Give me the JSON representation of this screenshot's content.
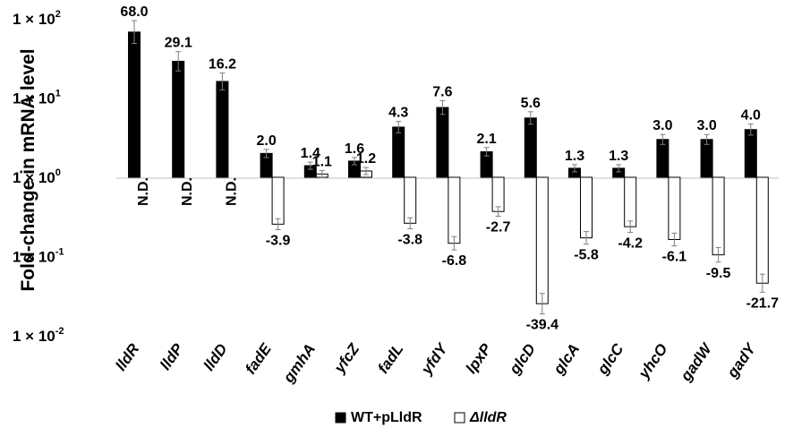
{
  "chart_data": {
    "type": "bar",
    "ylabel": "Fold-change in mRNA level",
    "yscale": "log",
    "ylim": [
      0.01,
      100
    ],
    "yticks": [
      {
        "base": "1 × 10",
        "exp": "2",
        "value": 100
      },
      {
        "base": "1 × 10",
        "exp": "1",
        "value": 10
      },
      {
        "base": "1 × 10",
        "exp": "0",
        "value": 1
      },
      {
        "base": "1 × 10",
        "exp": "-1",
        "value": 0.1
      },
      {
        "base": "1 × 10",
        "exp": "-2",
        "value": 0.01
      }
    ],
    "categories": [
      "lldR",
      "lldP",
      "lldD",
      "fadE",
      "gmhA",
      "yfcZ",
      "fadL",
      "yfdY",
      "lpxP",
      "glcD",
      "glcA",
      "glcC",
      "yhcO",
      "gadW",
      "gadY"
    ],
    "series": [
      {
        "name": "WT+pLldR",
        "color": "#000000",
        "values": [
          68.0,
          29.1,
          16.2,
          2.0,
          1.4,
          1.6,
          4.3,
          7.6,
          2.1,
          5.6,
          1.3,
          1.3,
          3.0,
          3.0,
          4.0
        ],
        "labels": [
          "68.0",
          "29.1",
          "16.2",
          "2.0",
          "1.4",
          "1.6",
          "4.3",
          "7.6",
          "2.1",
          "5.6",
          "1.3",
          "1.3",
          "3.0",
          "3.0",
          "4.0"
        ]
      },
      {
        "name": "ΔlldR",
        "color": "#ffffff",
        "values": [
          null,
          null,
          null,
          0.256,
          1.1,
          1.2,
          0.263,
          0.147,
          0.37,
          0.0254,
          0.172,
          0.238,
          0.164,
          0.105,
          0.0461
        ],
        "labels": [
          "N.D.",
          "N.D.",
          "N.D.",
          "-3.9",
          "1.1",
          "1.2",
          "-3.8",
          "-6.8",
          "-2.7",
          "-39.4",
          "-5.8",
          "-4.2",
          "-6.1",
          "-9.5",
          "-21.7"
        ]
      }
    ],
    "legend": {
      "position": "bottom",
      "items": [
        "WT+pLldR",
        "ΔlldR"
      ]
    },
    "grid": false
  }
}
